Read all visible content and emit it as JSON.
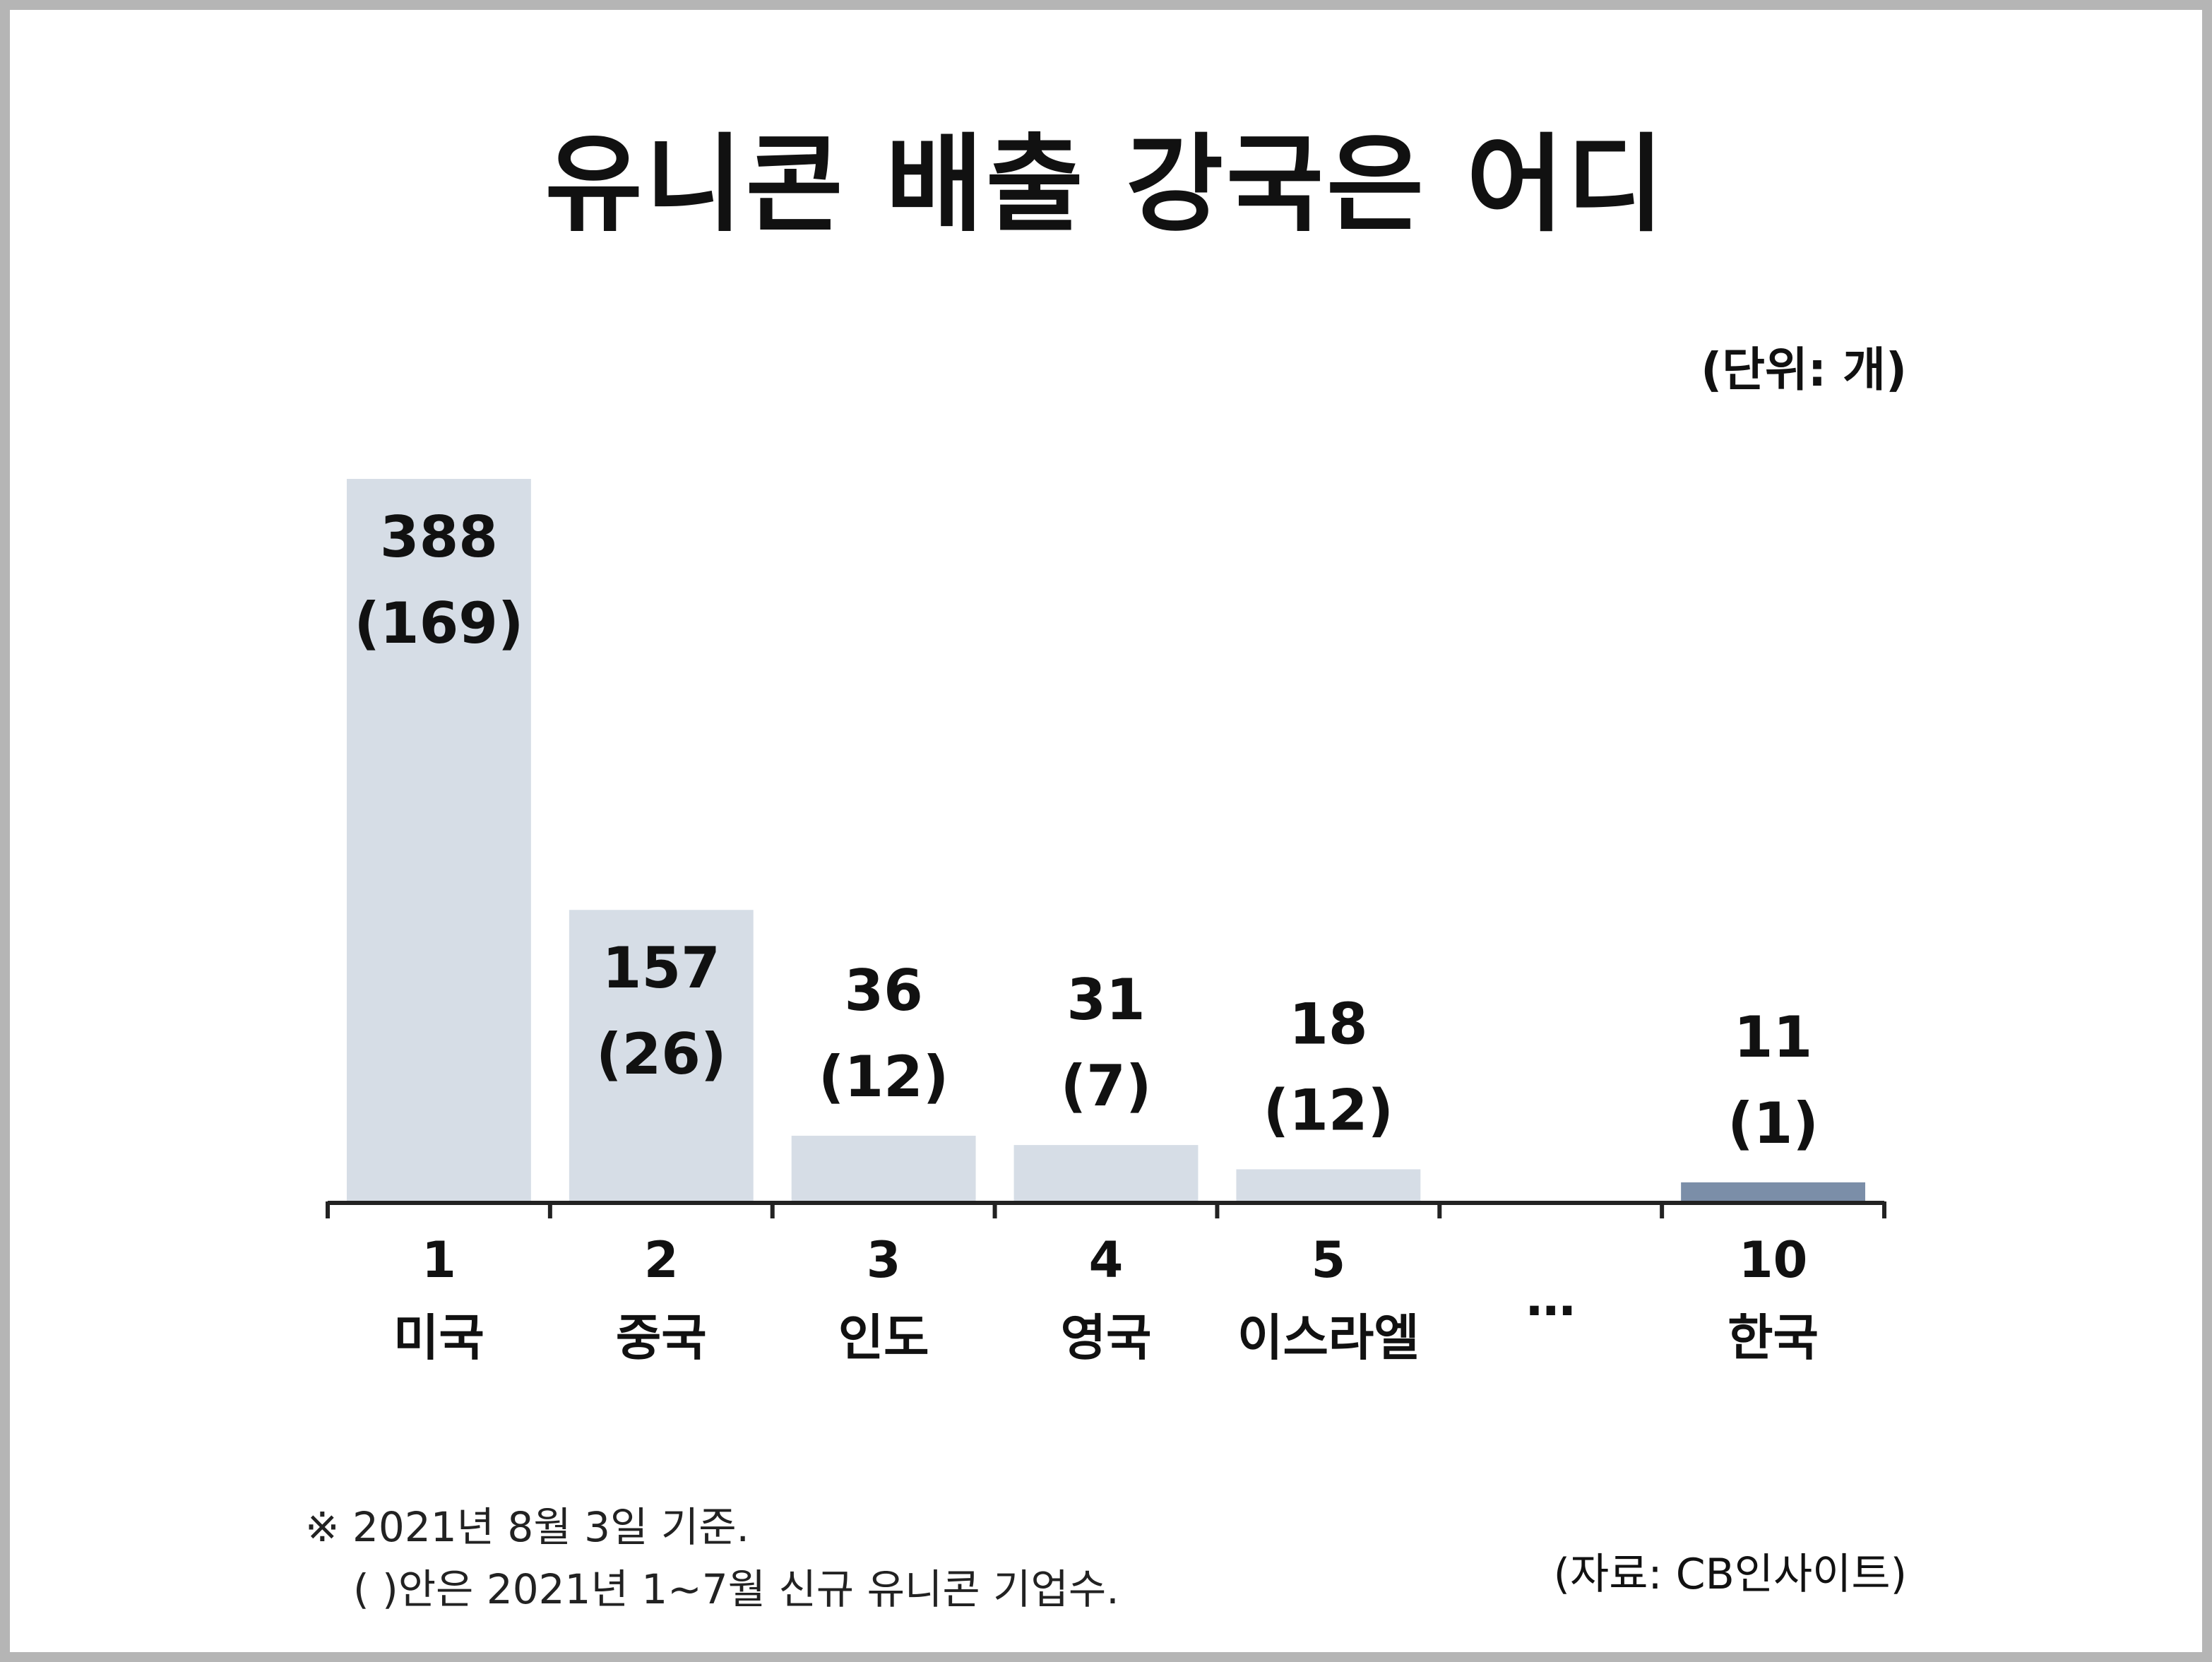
{
  "title": "유니콘 배출 강국은 어디",
  "unit_label": "(단위: 개)",
  "footnote": {
    "line1": "※ 2021년 8월 3일 기준.",
    "line2": "( )안은 2021년 1~7월 신규 유니콘 기업수."
  },
  "source": "(자료: CB인사이트)",
  "colors": {
    "bar": "#d6dde6",
    "highlight_bar": "#7b8ea8",
    "axis": "#222222"
  },
  "chart_data": {
    "type": "bar",
    "ylim": [
      0,
      400
    ],
    "categories": [
      {
        "rank": "1",
        "country": "미국",
        "total": 388,
        "total_label": "388",
        "new_label": "(169)",
        "highlight": false
      },
      {
        "rank": "2",
        "country": "중국",
        "total": 157,
        "total_label": "157",
        "new_label": "(26)",
        "highlight": false
      },
      {
        "rank": "3",
        "country": "인도",
        "total": 36,
        "total_label": "36",
        "new_label": "(12)",
        "highlight": false
      },
      {
        "rank": "4",
        "country": "영국",
        "total": 31,
        "total_label": "31",
        "new_label": "(7)",
        "highlight": false
      },
      {
        "rank": "5",
        "country": "이스라엘",
        "total": 18,
        "total_label": "18",
        "new_label": "(12)",
        "highlight": false
      },
      {
        "rank": "",
        "country": "…",
        "total": null,
        "total_label": "",
        "new_label": "",
        "highlight": false
      },
      {
        "rank": "10",
        "country": "한국",
        "total": 11,
        "total_label": "11",
        "new_label": "(1)",
        "highlight": true
      }
    ],
    "series": [
      {
        "values": [
          388,
          157,
          36,
          31,
          18,
          null,
          11
        ]
      },
      {
        "values": [
          169,
          26,
          12,
          7,
          12,
          null,
          1
        ]
      }
    ]
  }
}
